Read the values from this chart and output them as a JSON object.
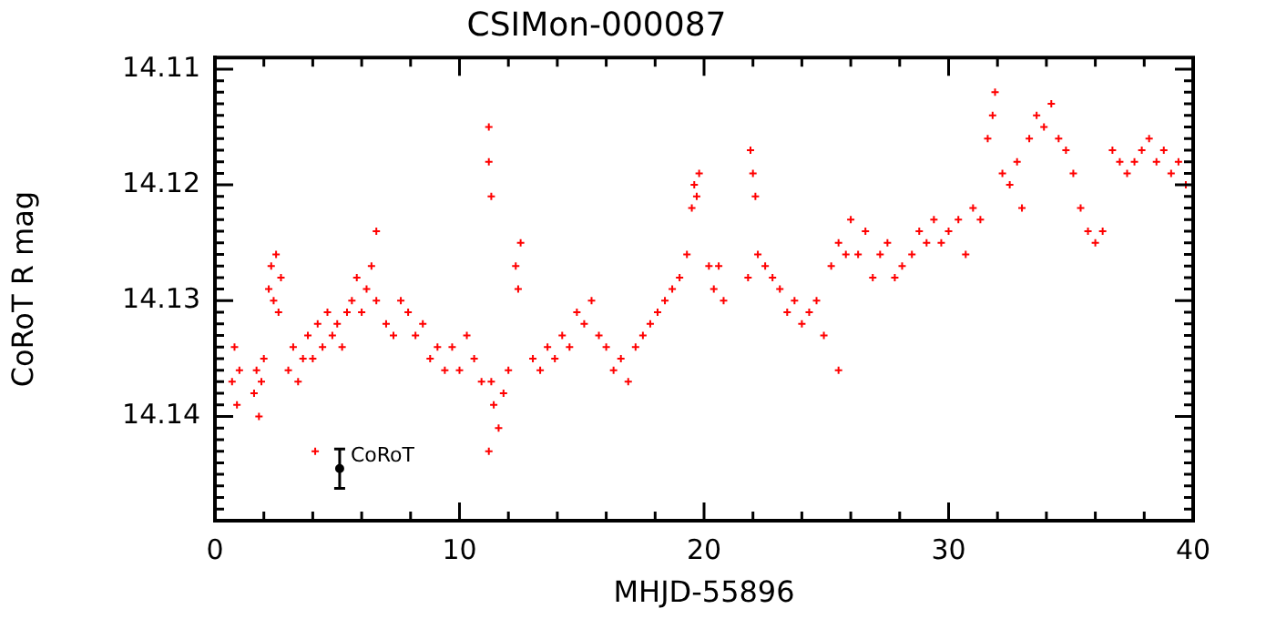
{
  "chart_data": {
    "type": "scatter",
    "title": "CSIMon-000087",
    "xlabel": "MHJD-55896",
    "ylabel": "CoRoT R mag",
    "xlim": [
      0,
      40
    ],
    "xticks": [
      0,
      {
        "value": 2,
        "label": null
      },
      {
        "value": 4,
        "label": null
      },
      {
        "value": 6,
        "label": null
      },
      {
        "value": 8,
        "label": null
      },
      10,
      {
        "value": 12,
        "label": null
      },
      {
        "value": 14,
        "label": null
      },
      {
        "value": 16,
        "label": null
      },
      {
        "value": 18,
        "label": null
      },
      20,
      {
        "value": 22,
        "label": null
      },
      {
        "value": 24,
        "label": null
      },
      {
        "value": 26,
        "label": null
      },
      {
        "value": 28,
        "label": null
      },
      30,
      {
        "value": 32,
        "label": null
      },
      {
        "value": 34,
        "label": null
      },
      {
        "value": 36,
        "label": null
      },
      {
        "value": 38,
        "label": null
      },
      40
    ],
    "ylim": [
      14.149,
      14.109
    ],
    "yticks": [
      14.11,
      {
        "value": 14.111,
        "label": null
      },
      {
        "value": 14.112,
        "label": null
      },
      {
        "value": 14.113,
        "label": null
      },
      {
        "value": 14.114,
        "label": null
      },
      {
        "value": 14.115,
        "label": null
      },
      {
        "value": 14.116,
        "label": null
      },
      {
        "value": 14.117,
        "label": null
      },
      {
        "value": 14.118,
        "label": null
      },
      {
        "value": 14.119,
        "label": null
      },
      14.12,
      {
        "value": 14.121,
        "label": null
      },
      {
        "value": 14.122,
        "label": null
      },
      {
        "value": 14.123,
        "label": null
      },
      {
        "value": 14.124,
        "label": null
      },
      {
        "value": 14.125,
        "label": null
      },
      {
        "value": 14.126,
        "label": null
      },
      {
        "value": 14.127,
        "label": null
      },
      {
        "value": 14.128,
        "label": null
      },
      {
        "value": 14.129,
        "label": null
      },
      14.13,
      {
        "value": 14.131,
        "label": null
      },
      {
        "value": 14.132,
        "label": null
      },
      {
        "value": 14.133,
        "label": null
      },
      {
        "value": 14.134,
        "label": null
      },
      {
        "value": 14.135,
        "label": null
      },
      {
        "value": 14.136,
        "label": null
      },
      {
        "value": 14.137,
        "label": null
      },
      {
        "value": 14.138,
        "label": null
      },
      {
        "value": 14.139,
        "label": null
      },
      14.14,
      {
        "value": 14.141,
        "label": null
      },
      {
        "value": 14.142,
        "label": null
      },
      {
        "value": 14.143,
        "label": null
      },
      {
        "value": 14.144,
        "label": null
      },
      {
        "value": 14.145,
        "label": null
      },
      {
        "value": 14.146,
        "label": null
      },
      {
        "value": 14.147,
        "label": null
      },
      {
        "value": 14.148,
        "label": null
      }
    ],
    "grid": false,
    "legend": false,
    "marker": "cross",
    "series": [
      {
        "color": "#ff0000",
        "x": [
          0.7,
          0.8,
          0.9,
          1.0,
          1.6,
          1.7,
          1.8,
          1.9,
          2.0,
          2.2,
          2.3,
          2.4,
          2.5,
          2.6,
          2.7,
          3.0,
          3.2,
          3.4,
          3.6,
          3.8,
          4.0,
          4.2,
          4.4,
          4.6,
          4.8,
          5.0,
          5.2,
          5.4,
          5.6,
          5.8,
          6.0,
          6.2,
          6.4,
          6.6,
          6.6,
          7.0,
          7.3,
          7.6,
          7.9,
          8.2,
          8.5,
          8.8,
          9.1,
          9.4,
          9.7,
          10.0,
          10.3,
          10.6,
          10.9,
          11.2,
          11.2,
          11.3,
          11.3,
          11.4,
          11.6,
          11.8,
          12.0,
          12.3,
          12.4,
          12.5,
          13.0,
          13.3,
          13.6,
          13.9,
          14.2,
          14.5,
          14.8,
          15.1,
          15.4,
          15.7,
          16.0,
          16.3,
          16.6,
          16.9,
          17.2,
          17.5,
          17.8,
          18.1,
          18.4,
          18.7,
          19.0,
          19.3,
          19.5,
          19.6,
          19.7,
          19.8,
          20.2,
          20.4,
          20.6,
          20.8,
          21.8,
          21.9,
          22.0,
          22.1,
          22.2,
          22.5,
          22.8,
          23.1,
          23.4,
          23.7,
          24.0,
          24.3,
          24.6,
          24.9,
          25.2,
          25.5,
          25.8,
          26.0,
          26.3,
          26.6,
          26.9,
          27.2,
          27.5,
          27.8,
          28.1,
          28.5,
          28.8,
          29.1,
          29.4,
          29.7,
          30.0,
          30.4,
          30.7,
          31.0,
          31.3,
          31.6,
          31.8,
          31.9,
          32.2,
          32.5,
          32.8,
          33.0,
          33.3,
          33.6,
          33.9,
          34.2,
          34.5,
          34.8,
          35.1,
          35.4,
          35.7,
          36.0,
          36.3,
          36.7,
          37.0,
          37.3,
          37.6,
          37.9,
          38.2,
          38.5,
          38.8,
          39.1,
          39.4,
          39.7,
          4.1,
          11.2,
          25.5
        ],
        "values": [
          14.137,
          14.134,
          14.139,
          14.136,
          14.138,
          14.136,
          14.14,
          14.137,
          14.135,
          14.129,
          14.127,
          14.13,
          14.126,
          14.131,
          14.128,
          14.136,
          14.134,
          14.137,
          14.135,
          14.133,
          14.135,
          14.132,
          14.134,
          14.131,
          14.133,
          14.132,
          14.134,
          14.131,
          14.13,
          14.128,
          14.131,
          14.129,
          14.127,
          14.124,
          14.13,
          14.132,
          14.133,
          14.13,
          14.131,
          14.133,
          14.132,
          14.135,
          14.134,
          14.136,
          14.134,
          14.136,
          14.133,
          14.135,
          14.137,
          14.115,
          14.118,
          14.121,
          14.137,
          14.139,
          14.141,
          14.138,
          14.136,
          14.127,
          14.129,
          14.125,
          14.135,
          14.136,
          14.134,
          14.135,
          14.133,
          14.134,
          14.131,
          14.132,
          14.13,
          14.133,
          14.134,
          14.136,
          14.135,
          14.137,
          14.134,
          14.133,
          14.132,
          14.131,
          14.13,
          14.129,
          14.128,
          14.126,
          14.122,
          14.12,
          14.121,
          14.119,
          14.127,
          14.129,
          14.127,
          14.13,
          14.128,
          14.117,
          14.119,
          14.121,
          14.126,
          14.127,
          14.128,
          14.129,
          14.131,
          14.13,
          14.132,
          14.131,
          14.13,
          14.133,
          14.127,
          14.125,
          14.126,
          14.123,
          14.126,
          14.124,
          14.128,
          14.126,
          14.125,
          14.128,
          14.127,
          14.126,
          14.124,
          14.125,
          14.123,
          14.125,
          14.124,
          14.123,
          14.126,
          14.122,
          14.123,
          14.116,
          14.114,
          14.112,
          14.119,
          14.12,
          14.118,
          14.122,
          14.116,
          14.114,
          14.115,
          14.113,
          14.116,
          14.117,
          14.119,
          14.122,
          14.124,
          14.125,
          14.124,
          14.117,
          14.118,
          14.119,
          14.118,
          14.117,
          14.116,
          14.118,
          14.117,
          14.119,
          14.118,
          14.12,
          14.143,
          14.143,
          14.136
        ]
      },
      {
        "name": "CoRoT",
        "color": "#000000",
        "marker": "circle",
        "x": [
          5.1
        ],
        "values": [
          14.1445
        ],
        "errors": [
          0.0017
        ]
      }
    ]
  }
}
